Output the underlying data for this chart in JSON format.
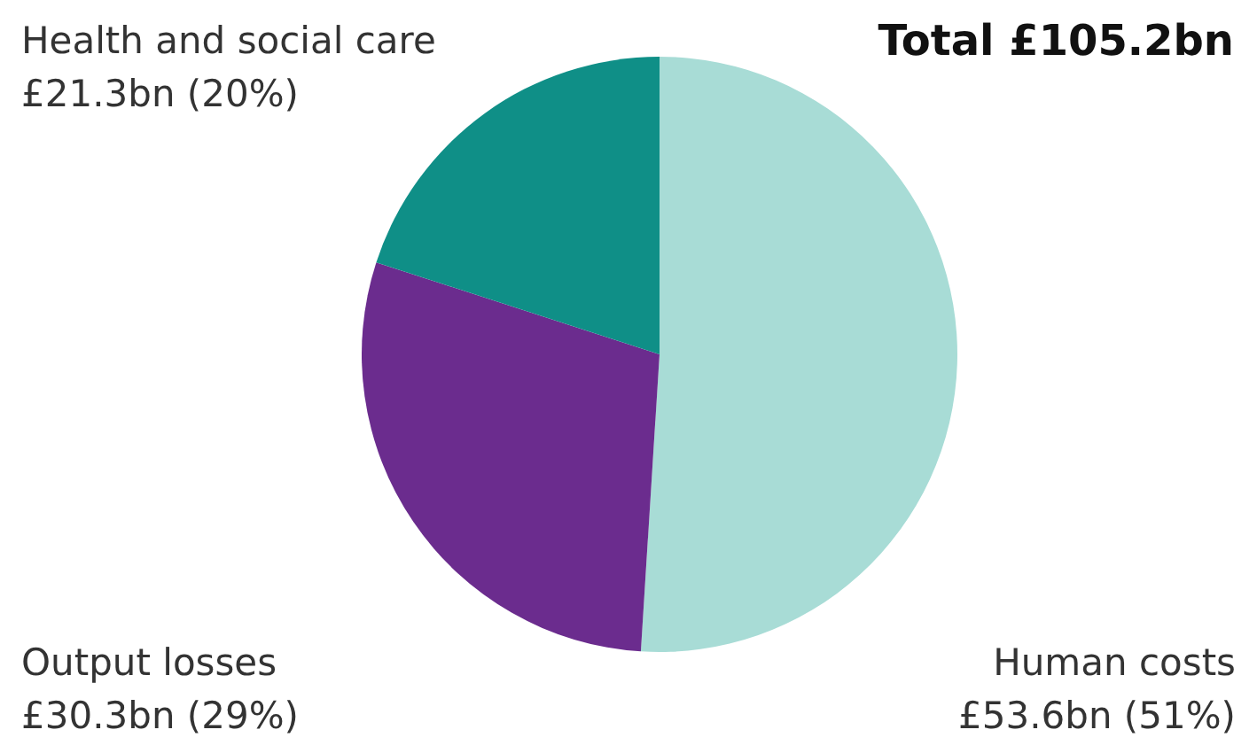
{
  "chart_data": {
    "type": "pie",
    "title": "Total £105.2bn",
    "categories": [
      "Human costs",
      "Output losses",
      "Health and social care"
    ],
    "values": [
      51,
      29,
      20
    ],
    "value_labels": [
      "£53.6bn (51%)",
      "£30.3bn (29%)",
      "£21.3bn (20%)"
    ],
    "colors": [
      "#a8dcd6",
      "#6b2c8e",
      "#0f8f87"
    ]
  }
}
